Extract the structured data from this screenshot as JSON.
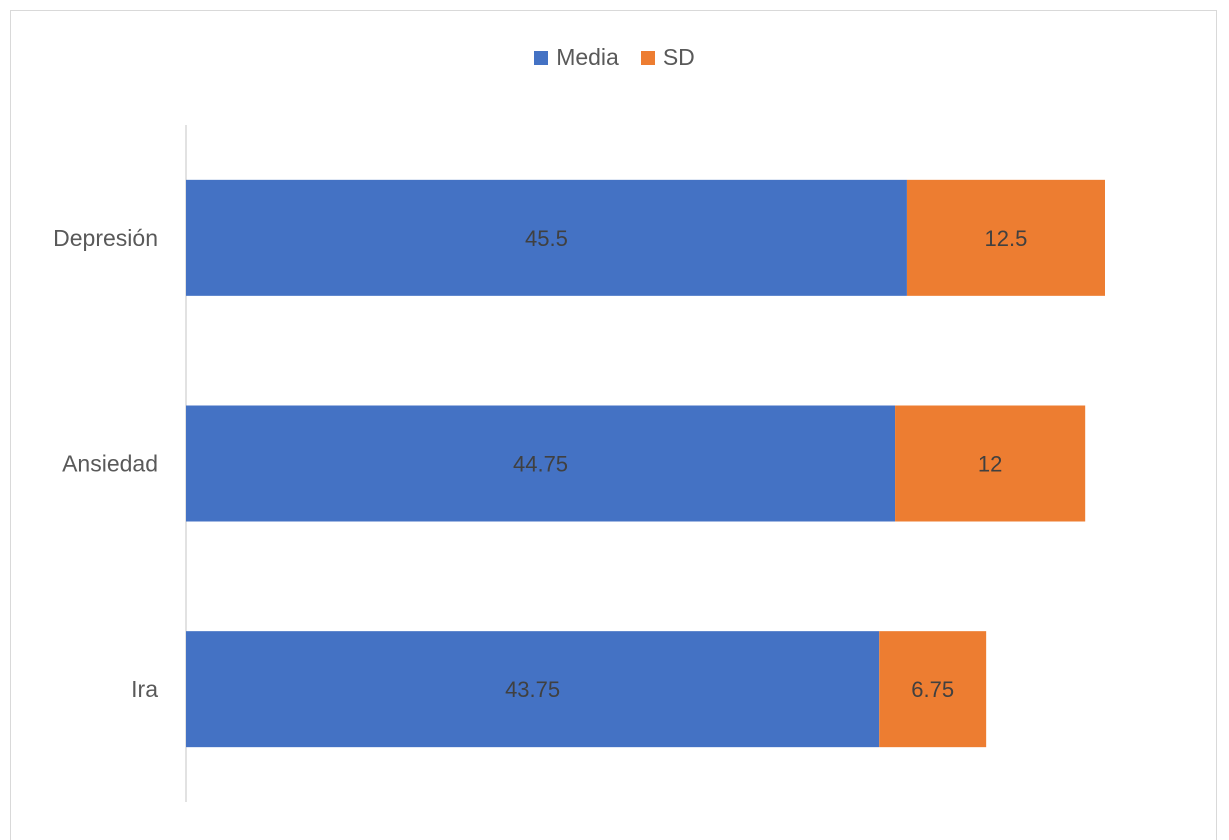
{
  "chart_data": {
    "type": "bar",
    "orientation": "horizontal",
    "stacked": true,
    "categories": [
      "Depresión",
      "Ansiedad",
      "Ira"
    ],
    "series": [
      {
        "name": "Media",
        "values": [
          45.5,
          44.75,
          43.75
        ],
        "color": "#4472C4"
      },
      {
        "name": "SD",
        "values": [
          12.5,
          12,
          6.75
        ],
        "color": "#ED7D31"
      }
    ],
    "xlim": [
      0,
      58
    ],
    "legend_position": "top",
    "grid": false,
    "data_labels": true
  }
}
